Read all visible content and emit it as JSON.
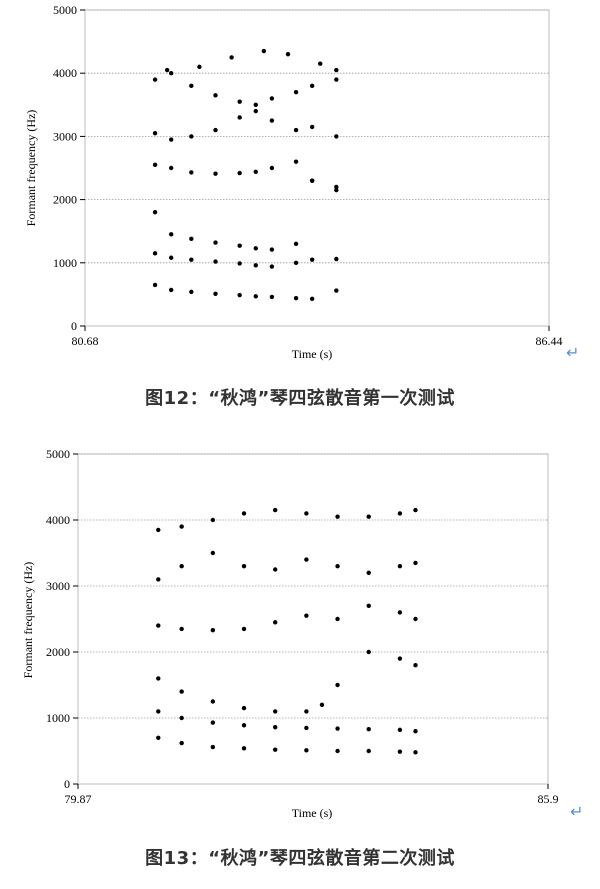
{
  "chart_data": [
    {
      "type": "scatter",
      "xlabel": "Time (s)",
      "ylabel": "Formant frequency (Hz)",
      "xlim": [
        80.68,
        86.44
      ],
      "ylim": [
        0,
        5000
      ],
      "x_tick_labels": [
        "80.68",
        "86.44"
      ],
      "y_ticks": [
        0,
        1000,
        2000,
        3000,
        4000,
        5000
      ],
      "grid": "horizontal",
      "caption": "图12：“秋鸿”琴四弦散音第一次测试",
      "series": [
        {
          "x": [
            81.55,
            81.75,
            82.0,
            82.3,
            82.6,
            82.8,
            83.0,
            83.3,
            83.5,
            83.8
          ],
          "y": [
            650,
            570,
            540,
            510,
            490,
            470,
            460,
            440,
            430,
            560
          ]
        },
        {
          "x": [
            81.55,
            81.75,
            82.0,
            82.3,
            82.6,
            82.8,
            83.0,
            83.3,
            83.5,
            83.8
          ],
          "y": [
            1150,
            1080,
            1050,
            1020,
            990,
            960,
            940,
            1000,
            1050,
            1060
          ]
        },
        {
          "x": [
            81.55,
            81.75,
            82.0,
            82.3,
            82.6,
            82.8,
            83.0,
            83.3,
            83.5,
            83.8
          ],
          "y": [
            1800,
            1450,
            1380,
            1320,
            1270,
            1230,
            1210,
            1300,
            2300,
            2200
          ]
        },
        {
          "x": [
            81.55,
            81.75,
            82.0,
            82.3,
            82.6,
            82.8,
            83.0,
            83.3,
            83.5,
            83.8
          ],
          "y": [
            2550,
            2500,
            2430,
            2410,
            2420,
            2440,
            2500,
            2600,
            2300,
            2150
          ]
        },
        {
          "x": [
            81.55,
            81.75,
            82.0,
            82.3,
            82.6,
            82.8,
            83.0,
            83.3,
            83.5,
            83.8
          ],
          "y": [
            3050,
            2950,
            3000,
            3100,
            3300,
            3400,
            3250,
            3100,
            3150,
            3000
          ]
        },
        {
          "x": [
            81.55,
            81.75,
            82.0,
            82.3,
            82.6,
            82.8,
            83.0,
            83.3,
            83.5,
            83.8
          ],
          "y": [
            3900,
            4000,
            3800,
            3650,
            3550,
            3500,
            3600,
            3700,
            3800,
            3900
          ]
        },
        {
          "x": [
            81.7,
            82.1,
            82.5,
            82.9,
            83.2,
            83.6,
            83.8
          ],
          "y": [
            4050,
            4100,
            4250,
            4350,
            4300,
            4150,
            4050
          ]
        }
      ]
    },
    {
      "type": "scatter",
      "xlabel": "Time (s)",
      "ylabel": "Formant frequency (Hz)",
      "xlim": [
        79.87,
        85.9
      ],
      "ylim": [
        0,
        5000
      ],
      "x_tick_labels": [
        "79.87",
        "85.9"
      ],
      "y_ticks": [
        0,
        1000,
        2000,
        3000,
        4000,
        5000
      ],
      "grid": "horizontal",
      "caption": "图13：“秋鸿”琴四弦散音第二次测试",
      "series": [
        {
          "x": [
            80.9,
            81.2,
            81.6,
            82.0,
            82.4,
            82.8,
            83.2,
            83.6,
            84.0,
            84.2
          ],
          "y": [
            700,
            620,
            560,
            540,
            520,
            510,
            500,
            500,
            490,
            480
          ]
        },
        {
          "x": [
            80.9,
            81.2,
            81.6,
            82.0,
            82.4,
            82.8,
            83.2,
            83.6,
            84.0,
            84.2
          ],
          "y": [
            1100,
            1000,
            930,
            890,
            860,
            850,
            840,
            830,
            820,
            800
          ]
        },
        {
          "x": [
            80.9,
            81.2,
            81.6,
            82.0,
            82.4,
            82.8,
            83.0,
            83.2,
            83.6,
            84.0,
            84.2
          ],
          "y": [
            1600,
            1400,
            1250,
            1150,
            1100,
            1100,
            1200,
            1500,
            2000,
            1900,
            1800
          ]
        },
        {
          "x": [
            80.9,
            81.2,
            81.6,
            82.0,
            82.4,
            82.8,
            83.2,
            83.6,
            84.0,
            84.2
          ],
          "y": [
            2400,
            2350,
            2330,
            2350,
            2450,
            2550,
            2500,
            2700,
            2600,
            2500
          ]
        },
        {
          "x": [
            80.9,
            81.2,
            81.6,
            82.0,
            82.4,
            82.8,
            83.2,
            83.6,
            84.0,
            84.2
          ],
          "y": [
            3100,
            3300,
            3500,
            3300,
            3250,
            3400,
            3300,
            3200,
            3300,
            3350
          ]
        },
        {
          "x": [
            80.9,
            81.2,
            81.6,
            82.0,
            82.4,
            82.8,
            83.2,
            83.6,
            84.0,
            84.2
          ],
          "y": [
            3850,
            3900,
            4000,
            4100,
            4150,
            4100,
            4050,
            4050,
            4100,
            4150
          ]
        }
      ]
    }
  ]
}
